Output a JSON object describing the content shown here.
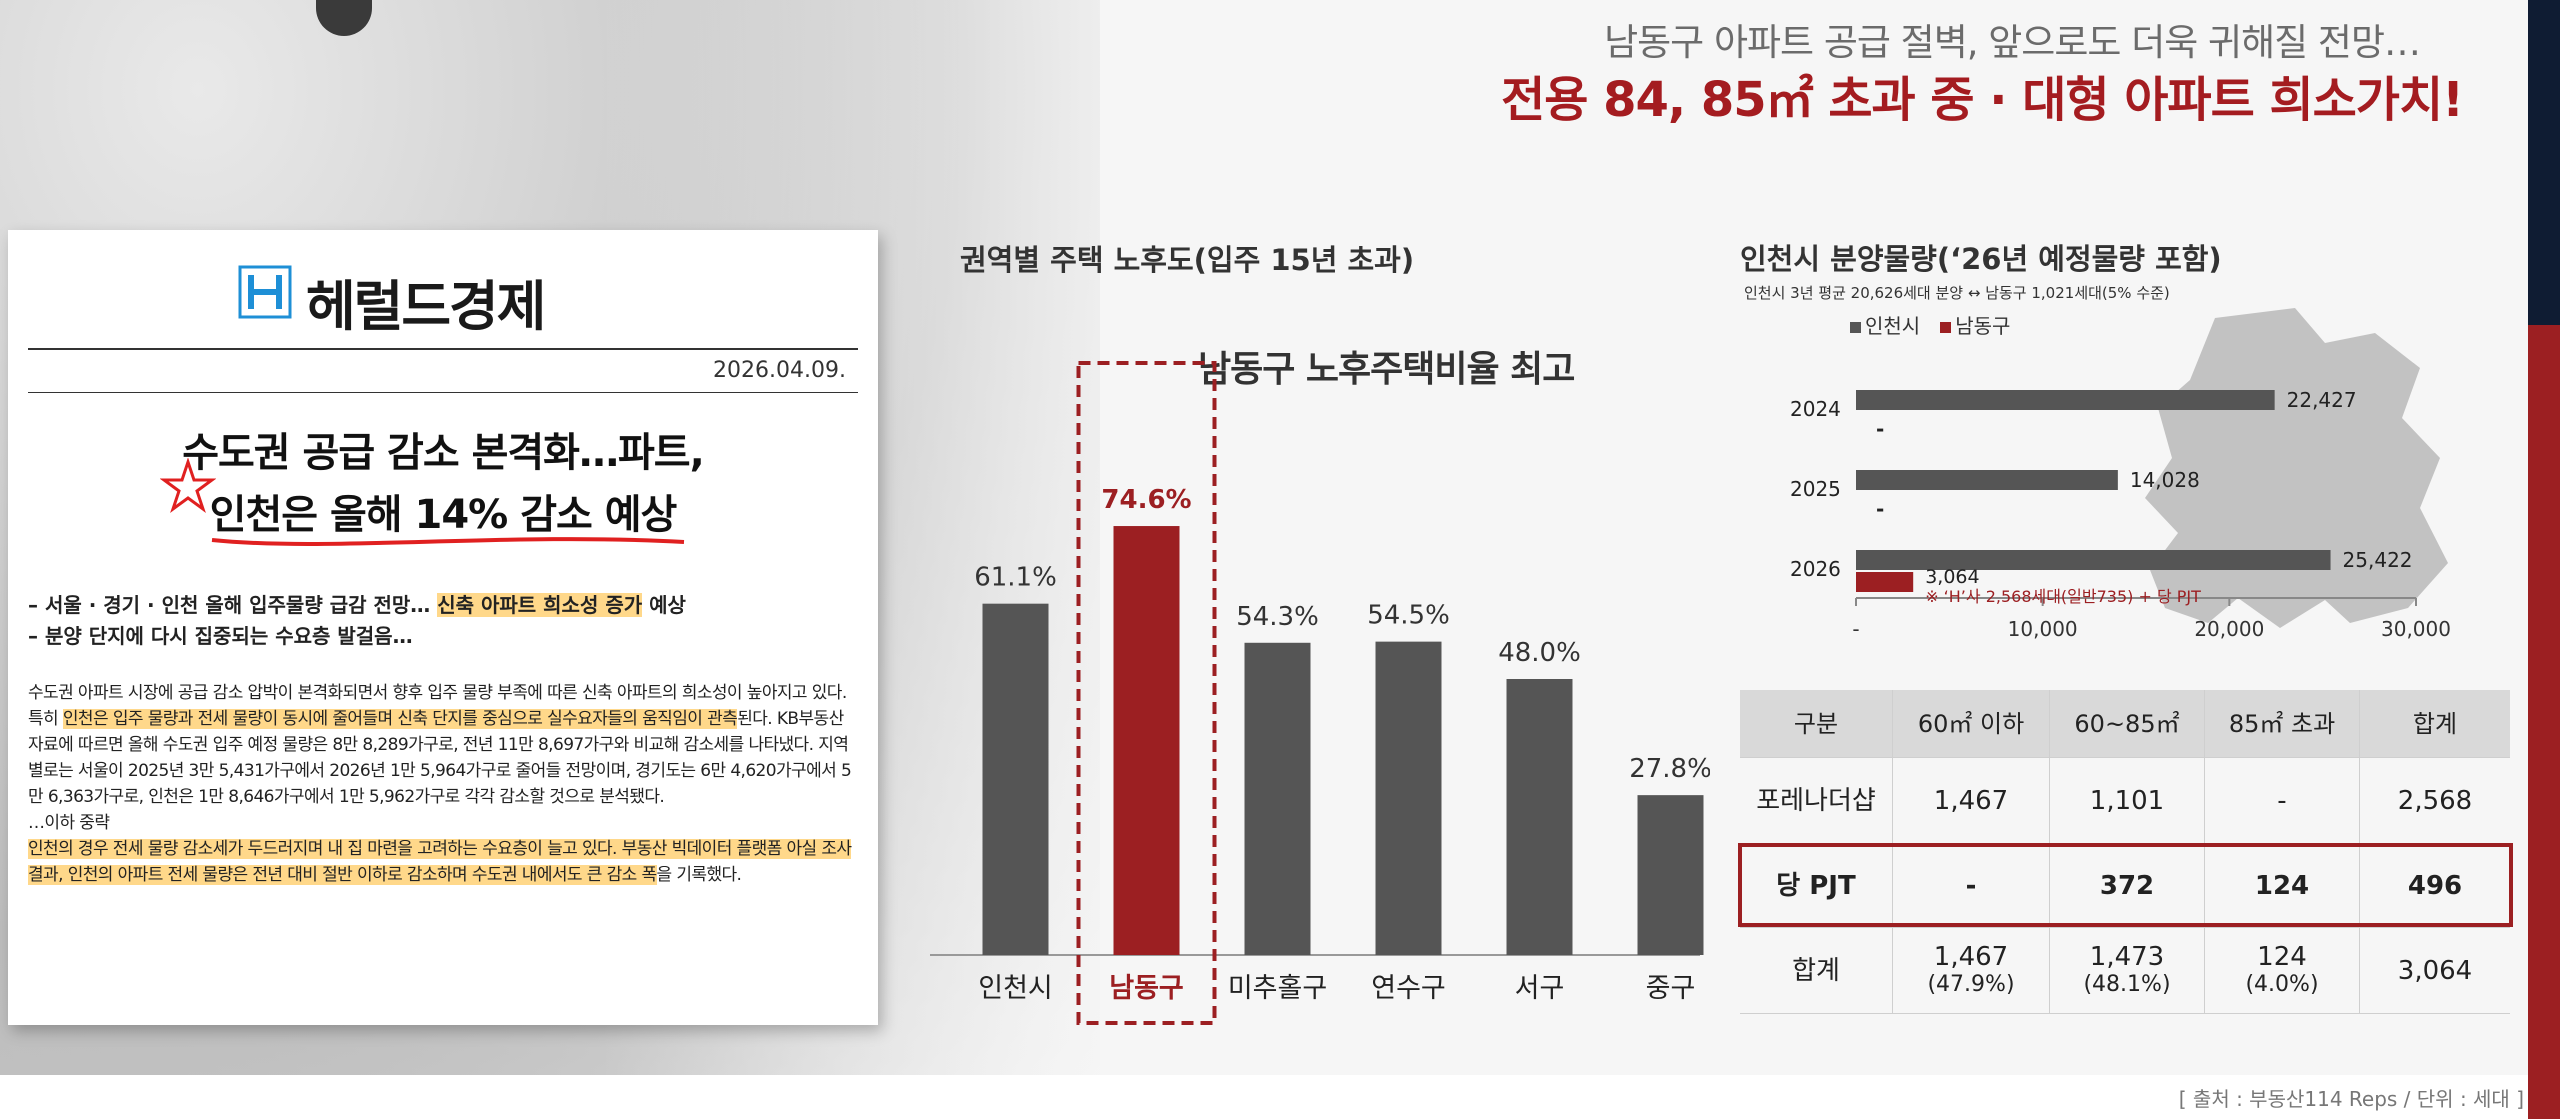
{
  "header": {
    "subtitle": "남동구 아파트 공급 절벽, 앞으로도 더욱 귀해질 전망…",
    "title": "전용 84, 85㎡ 초과 중 · 대형 아파트 희소가치!"
  },
  "article": {
    "logo_text": "헤럴드경제",
    "date": "2026.04.09.",
    "title_line1": "수도권 공급 감소 본격화…파트,",
    "title_line2": "인천은 올해 14% 감소 예상",
    "bullet1_pre": "– 서울 · 경기 · 인천 올해 입주물량 급감 전망… ",
    "bullet1_hl": "신축 아파트 희소성 증가",
    "bullet1_post": " 예상",
    "bullet2": "– 분양 단지에 다시 집중되는 수요층 발걸음…",
    "p1_a": "수도권 아파트 시장에 공급 감소 압박이 본격화되면서 향후 입주 물량 부족에 따른 신축 아파트의 희소성이 높아지고 있다. 특히 ",
    "p1_hl": "인천은 입주 물량과 전세 물량이 동시에 줄어들며 신축 단지를 중심으로 실수요자들의 움직임이 관측",
    "p1_b": "된다. KB부동산 자료에 따르면 올해 수도권 입주 예정 물량은 8만 8,289가구로, 전년 11만 8,697가구와 비교해 감소세를 나타냈다. 지역별로는 서울이 2025년 3만 5,431가구에서 2026년 1만 5,964가구로 줄어들 전망이며, 경기도는 6만 4,620가구에서 5만 6,363가구로, 인천은 1만 8,646가구에서 1만 5,962가구로 각각 감소할 것으로 분석됐다.",
    "p2": "…이하 중략",
    "p3_hl": "인천의 경우 전세 물량 감소세가 두드러지며 내 집 마련을 고려하는 수요층이 늘고 있다. 부동산 빅데이터 플랫폼 아실 조사 결과, 인천의 아파트 전세 물량은 전년 대비 절반 이하로 감소하며 수도권 내에서도 큰 감소 폭",
    "p3_post": "을 기록했다."
  },
  "bar_section": {
    "title": "권역별 주택 노후도(입주 15년 초과)",
    "callout": "남동구 노후주택비율 최고"
  },
  "supply_section": {
    "title": "인천시 분양물량(‘26년 예정물량 포함)",
    "subtitle": "인천시 3년 평균 20,626세대 분양 ↔ 남동구 1,021세대(5% 수준)",
    "legend_incheon": "인천시",
    "legend_namdong": "남동구",
    "note": "※ ‘H’사 2,568세대(일반735) + 당 PJT"
  },
  "table": {
    "headers": [
      "구분",
      "60㎡ 이하",
      "60~85㎡",
      "85㎡ 초과",
      "합계"
    ],
    "rows": [
      [
        {
          "l1": "포레나더샵"
        },
        {
          "l1": "1,467"
        },
        {
          "l1": "1,101"
        },
        {
          "l1": "-"
        },
        {
          "l1": "2,568"
        }
      ],
      [
        {
          "l1": "당 PJT"
        },
        {
          "l1": "-"
        },
        {
          "l1": "372"
        },
        {
          "l1": "124"
        },
        {
          "l1": "496"
        }
      ],
      [
        {
          "l1": "합계"
        },
        {
          "l1": "1,467",
          "l2": "(47.9%)"
        },
        {
          "l1": "1,473",
          "l2": "(48.1%)"
        },
        {
          "l1": "124",
          "l2": "(4.0%)"
        },
        {
          "l1": "3,064"
        }
      ]
    ]
  },
  "source": "[ 출처 : 부동산114 Reps / 단위 : 세대 ]",
  "colors": {
    "accent_red": "#9c1f22",
    "bar_gray": "#555555",
    "highlight": "#ffd88a"
  },
  "chart_data": [
    {
      "type": "bar",
      "title": "권역별 주택 노후도(입주 15년 초과)",
      "categories": [
        "인천시",
        "남동구",
        "미추홀구",
        "연수구",
        "서구",
        "중구"
      ],
      "values": [
        61.1,
        74.6,
        54.3,
        54.5,
        48.0,
        27.8
      ],
      "value_labels": [
        "61.1%",
        "74.6%",
        "54.3%",
        "54.5%",
        "48.0%",
        "27.8%"
      ],
      "highlight_index": 1,
      "ylim": [
        0,
        80
      ]
    },
    {
      "type": "bar",
      "orientation": "horizontal",
      "title": "인천시 분양물량(‘26년 예정물량 포함)",
      "categories": [
        "2024",
        "2025",
        "2026"
      ],
      "series": [
        {
          "name": "인천시",
          "values": [
            22427,
            14028,
            25422
          ],
          "labels": [
            "22,427",
            "14,028",
            "25,422"
          ]
        },
        {
          "name": "남동구",
          "values": [
            0,
            0,
            3064
          ],
          "labels": [
            "-",
            "-",
            "3,064"
          ]
        }
      ],
      "xticks": [
        "-",
        "10,000",
        "20,000",
        "30,000"
      ],
      "xlim": [
        0,
        30000
      ],
      "legend": "top-left"
    }
  ]
}
